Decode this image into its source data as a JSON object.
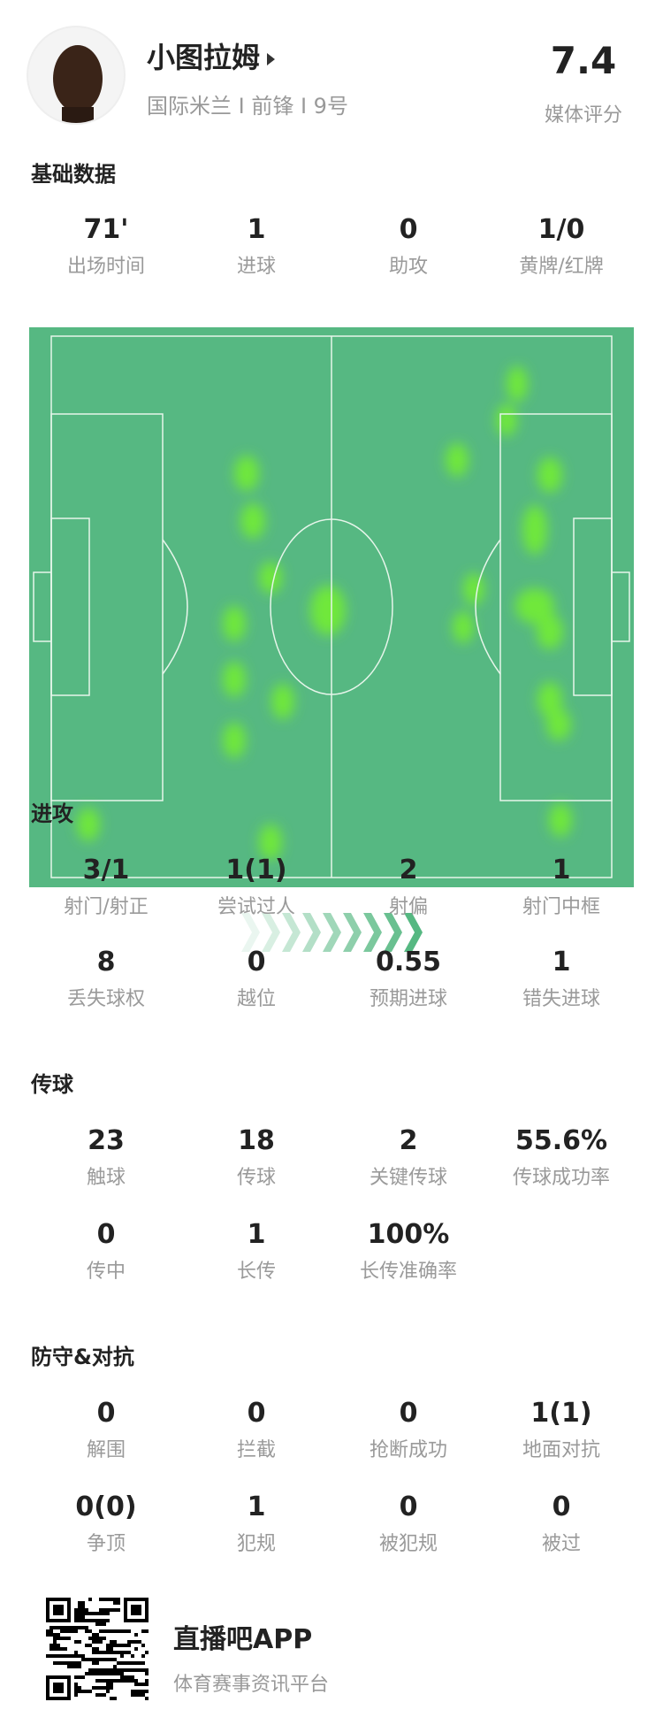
{
  "player": {
    "name": "小图拉姆",
    "subtitle": "国际米兰 I 前锋 I 9号",
    "rating": "7.4",
    "rating_label": "媒体评分"
  },
  "colors": {
    "pitch": "#56b882",
    "heat": "#6fe83a",
    "accent": "#56b882"
  },
  "sections": [
    {
      "title": "基础数据",
      "rows": [
        [
          {
            "v": "71'",
            "l": "出场时间"
          },
          {
            "v": "1",
            "l": "进球"
          },
          {
            "v": "0",
            "l": "助攻"
          },
          {
            "v": "1/0",
            "l": "黄牌/红牌"
          }
        ]
      ]
    },
    {
      "title": "进攻",
      "rows": [
        [
          {
            "v": "3/1",
            "l": "射门/射正"
          },
          {
            "v": "1(1)",
            "l": "尝试过人"
          },
          {
            "v": "2",
            "l": "射偏"
          },
          {
            "v": "1",
            "l": "射门中框"
          }
        ],
        [
          {
            "v": "8",
            "l": "丢失球权"
          },
          {
            "v": "0",
            "l": "越位"
          },
          {
            "v": "0.55",
            "l": "预期进球"
          },
          {
            "v": "1",
            "l": "错失进球"
          }
        ]
      ]
    },
    {
      "title": "传球",
      "rows": [
        [
          {
            "v": "23",
            "l": "触球"
          },
          {
            "v": "18",
            "l": "传球"
          },
          {
            "v": "2",
            "l": "关键传球"
          },
          {
            "v": "55.6%",
            "l": "传球成功率"
          }
        ],
        [
          {
            "v": "0",
            "l": "传中"
          },
          {
            "v": "1",
            "l": "长传"
          },
          {
            "v": "100%",
            "l": "长传准确率"
          }
        ]
      ]
    },
    {
      "title": "防守&对抗",
      "rows": [
        [
          {
            "v": "0",
            "l": "解围"
          },
          {
            "v": "0",
            "l": "拦截"
          },
          {
            "v": "0",
            "l": "抢断成功"
          },
          {
            "v": "1(1)",
            "l": "地面对抗"
          }
        ],
        [
          {
            "v": "0(0)",
            "l": "争顶"
          },
          {
            "v": "1",
            "l": "犯规"
          },
          {
            "v": "0",
            "l": "被犯规"
          },
          {
            "v": "0",
            "l": "被过"
          }
        ]
      ]
    }
  ],
  "footer": {
    "app_name": "直播吧APP",
    "tagline": "体育赛事资讯平台"
  }
}
